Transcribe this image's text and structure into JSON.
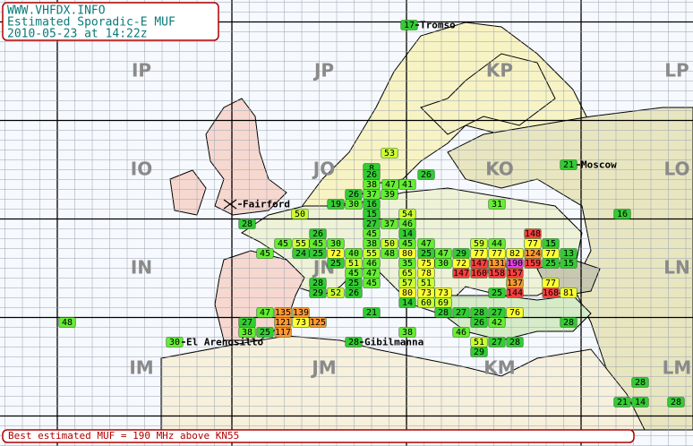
{
  "header": {
    "site": "WWW.VHFDX.INFO",
    "title": "Estimated Sporadic-E MUF",
    "timestamp": "2010-05-23 at 14:22z"
  },
  "footer": "Best estimated MUF = 190 MHz above KN55",
  "locators": [
    "IP",
    "JP",
    "KP",
    "LP",
    "IO",
    "JO",
    "KO",
    "LO",
    "IN",
    "JN",
    "KN",
    "LN",
    "IM",
    "JM",
    "KM",
    "LM"
  ],
  "stations": [
    "Tromso",
    "Moscow",
    "Fairford",
    "El Arenosillo",
    "Gibilmanna"
  ],
  "squares": [
    17,
    53,
    8,
    26,
    26,
    38,
    47,
    41,
    26,
    37,
    39,
    21,
    19,
    30,
    16,
    31,
    50,
    15,
    54,
    16,
    28,
    27,
    37,
    46,
    26,
    45,
    14,
    148,
    45,
    55,
    45,
    30,
    38,
    50,
    45,
    47,
    59,
    44,
    77,
    15,
    45,
    24,
    25,
    72,
    40,
    55,
    48,
    80,
    25,
    47,
    29,
    77,
    77,
    82,
    124,
    77,
    13,
    25,
    51,
    46,
    35,
    75,
    30,
    72,
    147,
    131,
    190,
    159,
    25,
    15,
    45,
    47,
    65,
    78,
    147,
    160,
    158,
    157,
    28,
    25,
    45,
    57,
    51,
    137,
    77,
    29,
    52,
    26,
    80,
    73,
    73,
    25,
    144,
    168,
    81,
    14,
    60,
    69,
    47,
    135,
    139,
    21,
    28,
    27,
    28,
    27,
    76,
    48,
    27,
    121,
    73,
    125,
    26,
    42,
    28,
    38,
    25,
    117,
    38,
    46,
    30,
    28,
    51,
    27,
    28,
    29,
    28,
    21,
    14,
    28
  ]
}
